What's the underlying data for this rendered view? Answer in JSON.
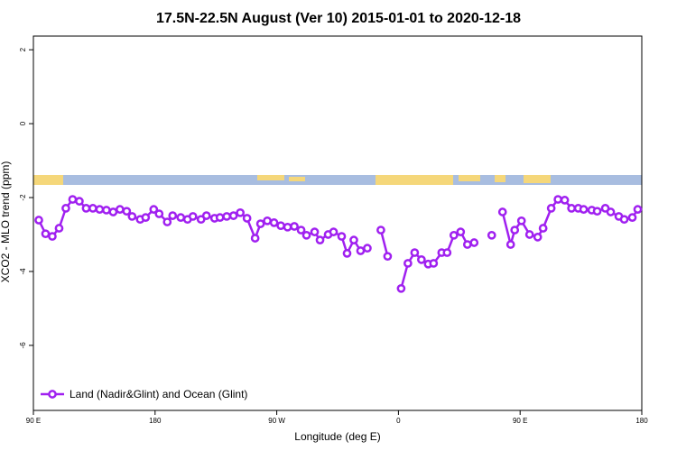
{
  "chart_data": {
    "type": "line",
    "title": "17.5N-22.5N August (Ver 10)   2015-01-01 to 2020-12-18",
    "x_label": "Longitude (deg E)",
    "y_label": "XCO2 - MLO trend (ppm)",
    "xlim": [
      90,
      540
    ],
    "ylim": [
      -7.76,
      2.37
    ],
    "xticks": [
      {
        "value": 90,
        "label": "90 E"
      },
      180,
      {
        "value": 270,
        "label": "90 W"
      },
      {
        "value": 360,
        "label": "0"
      },
      {
        "value": 450,
        "label": "90 E"
      },
      {
        "value": 540,
        "label": "180"
      }
    ],
    "yticks": [
      -6,
      -4,
      -2,
      0,
      2
    ],
    "grid": false,
    "legend": "bottom-left",
    "x": [
      94,
      99,
      104,
      109,
      114,
      119,
      124,
      129,
      134,
      139,
      144,
      149,
      154,
      159,
      163,
      169,
      173,
      179,
      183,
      189,
      193,
      199,
      204,
      208,
      214,
      218,
      224,
      228,
      233,
      238,
      243,
      248,
      254,
      258,
      263,
      268,
      273,
      278,
      283,
      288,
      292,
      298,
      302,
      308,
      312,
      318,
      322,
      327,
      332,
      337,
      342,
      347,
      352,
      357,
      362,
      367,
      372,
      377,
      382,
      386,
      392,
      396,
      401,
      406,
      411,
      416,
      422,
      429,
      432,
      437,
      443,
      446,
      451,
      457,
      463,
      467,
      473,
      478,
      483,
      488,
      493,
      497,
      503,
      507,
      513,
      517,
      523,
      527,
      533,
      537
    ],
    "series": [
      {
        "name": "Land (Nadir&Glint) and Ocean (Glint)",
        "color": "#a020f0",
        "values": [
          -2.61,
          -2.98,
          -3.05,
          -2.83,
          -2.29,
          -2.05,
          -2.1,
          -2.29,
          -2.29,
          -2.32,
          -2.34,
          -2.39,
          -2.32,
          -2.37,
          -2.51,
          -2.59,
          -2.54,
          -2.32,
          -2.44,
          -2.66,
          -2.49,
          -2.54,
          -2.59,
          -2.51,
          -2.59,
          -2.49,
          -2.56,
          -2.54,
          -2.51,
          -2.49,
          -2.41,
          -2.56,
          -3.1,
          -2.71,
          -2.63,
          -2.68,
          -2.76,
          -2.8,
          -2.78,
          -2.88,
          -3.02,
          -2.93,
          -3.15,
          -3.0,
          -2.93,
          -3.05,
          -3.51,
          -3.15,
          -3.44,
          -3.37,
          null,
          -2.88,
          -3.59,
          null,
          -4.46,
          -3.78,
          -3.49,
          -3.68,
          -3.8,
          -3.78,
          -3.49,
          -3.49,
          -3.02,
          -2.93,
          -3.27,
          -3.22,
          null,
          -3.02,
          null,
          -2.39,
          -3.27,
          -2.88,
          -2.63,
          -3.0,
          -3.07,
          -2.83,
          -2.29,
          -2.05,
          -2.07,
          -2.29,
          -2.29,
          -2.32,
          -2.34,
          -2.37,
          -2.29,
          -2.39,
          -2.51,
          -2.59,
          -2.54,
          -2.32
        ]
      }
    ]
  }
}
